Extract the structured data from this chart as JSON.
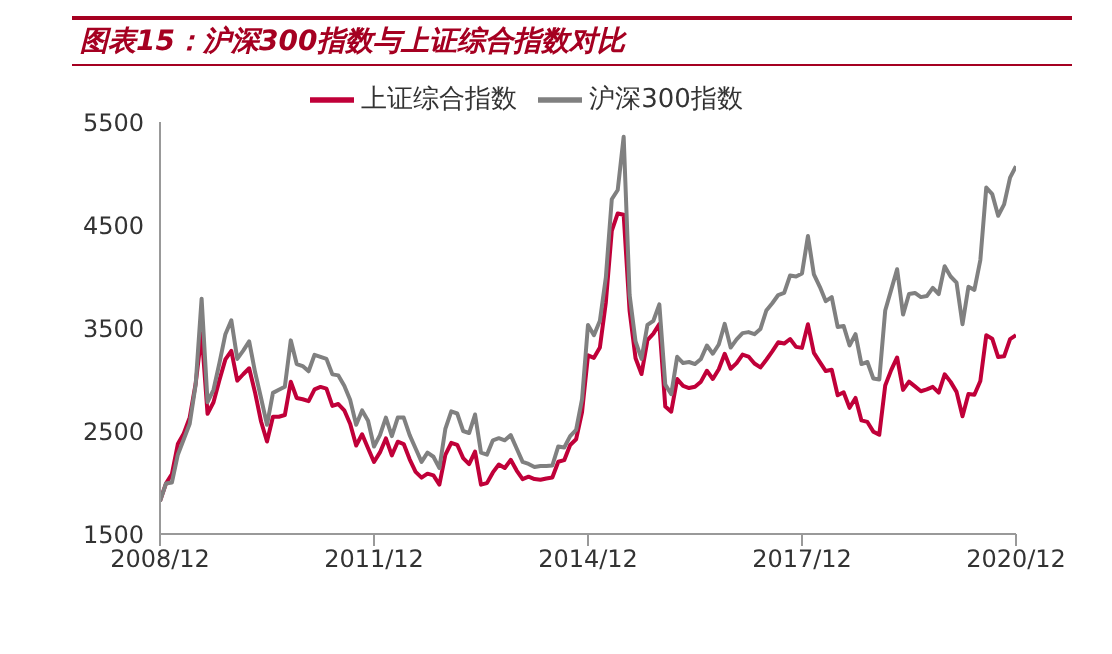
{
  "chart_data": {
    "type": "line",
    "title": "图表15：沪深300指数与上证综合指数对比",
    "x": [
      "2008-12",
      "2009-01",
      "2009-02",
      "2009-03",
      "2009-04",
      "2009-05",
      "2009-06",
      "2009-07",
      "2009-08",
      "2009-09",
      "2009-10",
      "2009-11",
      "2009-12",
      "2010-01",
      "2010-02",
      "2010-03",
      "2010-04",
      "2010-05",
      "2010-06",
      "2010-07",
      "2010-08",
      "2010-09",
      "2010-10",
      "2010-11",
      "2010-12",
      "2011-01",
      "2011-02",
      "2011-03",
      "2011-04",
      "2011-05",
      "2011-06",
      "2011-07",
      "2011-08",
      "2011-09",
      "2011-10",
      "2011-11",
      "2011-12",
      "2012-01",
      "2012-02",
      "2012-03",
      "2012-04",
      "2012-05",
      "2012-06",
      "2012-07",
      "2012-08",
      "2012-09",
      "2012-10",
      "2012-11",
      "2012-12",
      "2013-01",
      "2013-02",
      "2013-03",
      "2013-04",
      "2013-05",
      "2013-06",
      "2013-07",
      "2013-08",
      "2013-09",
      "2013-10",
      "2013-11",
      "2013-12",
      "2014-01",
      "2014-02",
      "2014-03",
      "2014-04",
      "2014-05",
      "2014-06",
      "2014-07",
      "2014-08",
      "2014-09",
      "2014-10",
      "2014-11",
      "2014-12",
      "2015-01",
      "2015-02",
      "2015-03",
      "2015-04",
      "2015-05",
      "2015-06",
      "2015-07",
      "2015-08",
      "2015-09",
      "2015-10",
      "2015-11",
      "2015-12",
      "2016-01",
      "2016-02",
      "2016-03",
      "2016-04",
      "2016-05",
      "2016-06",
      "2016-07",
      "2016-08",
      "2016-09",
      "2016-10",
      "2016-11",
      "2016-12",
      "2017-01",
      "2017-02",
      "2017-03",
      "2017-04",
      "2017-05",
      "2017-06",
      "2017-07",
      "2017-08",
      "2017-09",
      "2017-10",
      "2017-11",
      "2017-12",
      "2018-01",
      "2018-02",
      "2018-03",
      "2018-04",
      "2018-05",
      "2018-06",
      "2018-07",
      "2018-08",
      "2018-09",
      "2018-10",
      "2018-11",
      "2018-12",
      "2019-01",
      "2019-02",
      "2019-03",
      "2019-04",
      "2019-05",
      "2019-06",
      "2019-07",
      "2019-08",
      "2019-09",
      "2019-10",
      "2019-11",
      "2019-12",
      "2020-01",
      "2020-02",
      "2020-03",
      "2020-04",
      "2020-05",
      "2020-06",
      "2020-07",
      "2020-08",
      "2020-09",
      "2020-10",
      "2020-11",
      "2020-12"
    ],
    "series": [
      {
        "name": "上证综合指数",
        "color": "#c00039",
        "values": [
          1820,
          1990,
          2082,
          2373,
          2477,
          2632,
          2959,
          3450,
          2667,
          2779,
          2995,
          3195,
          3277,
          2989,
          3051,
          3109,
          2870,
          2592,
          2398,
          2638,
          2638,
          2655,
          2978,
          2820,
          2808,
          2790,
          2905,
          2928,
          2911,
          2743,
          2762,
          2701,
          2568,
          2359,
          2468,
          2333,
          2199,
          2292,
          2428,
          2263,
          2396,
          2373,
          2225,
          2103,
          2047,
          2086,
          2069,
          1980,
          2269,
          2385,
          2366,
          2237,
          2178,
          2300,
          1979,
          1994,
          2098,
          2175,
          2141,
          2220,
          2116,
          2033,
          2056,
          2033,
          2026,
          2039,
          2048,
          2202,
          2217,
          2364,
          2420,
          2683,
          3235,
          3210,
          3310,
          3748,
          4442,
          4612,
          4600,
          3664,
          3206,
          3053,
          3383,
          3445,
          3539,
          2738,
          2688,
          3004,
          2938,
          2917,
          2930,
          2979,
          3085,
          3005,
          3100,
          3250,
          3104,
          3159,
          3242,
          3223,
          3155,
          3117,
          3192,
          3273,
          3361,
          3349,
          3393,
          3317,
          3307,
          3536,
          3259,
          3169,
          3082,
          3095,
          2847,
          2876,
          2725,
          2821,
          2603,
          2588,
          2494,
          2464,
          2941,
          3091,
          3214,
          2899,
          2979,
          2933,
          2886,
          2905,
          2929,
          2872,
          3050,
          2977,
          2880,
          2643,
          2860,
          2852,
          2985,
          3429,
          3396,
          3218,
          3225,
          3392,
          3430
        ]
      },
      {
        "name": "沪深300指数",
        "color": "#808080",
        "values": [
          1817,
          1990,
          2000,
          2270,
          2420,
          2570,
          2950,
          3785,
          2780,
          2900,
          3160,
          3440,
          3575,
          3200,
          3280,
          3370,
          3070,
          2820,
          2560,
          2870,
          2900,
          2930,
          3380,
          3150,
          3130,
          3080,
          3240,
          3220,
          3200,
          3050,
          3040,
          2940,
          2800,
          2560,
          2700,
          2600,
          2350,
          2460,
          2630,
          2450,
          2630,
          2630,
          2460,
          2330,
          2200,
          2290,
          2250,
          2140,
          2520,
          2690,
          2670,
          2500,
          2480,
          2660,
          2290,
          2270,
          2410,
          2430,
          2410,
          2460,
          2330,
          2200,
          2180,
          2150,
          2160,
          2160,
          2165,
          2350,
          2340,
          2450,
          2510,
          2810,
          3530,
          3430,
          3570,
          3990,
          4750,
          4840,
          5357,
          3820,
          3370,
          3200,
          3530,
          3570,
          3730,
          2950,
          2857,
          3220,
          3160,
          3170,
          3150,
          3200,
          3330,
          3250,
          3340,
          3540,
          3310,
          3390,
          3450,
          3460,
          3440,
          3490,
          3670,
          3740,
          3820,
          3840,
          4010,
          4000,
          4030,
          4393,
          4020,
          3900,
          3760,
          3800,
          3510,
          3520,
          3330,
          3440,
          3150,
          3170,
          3010,
          3000,
          3670,
          3870,
          4071,
          3630,
          3830,
          3840,
          3800,
          3810,
          3890,
          3830,
          4100,
          4000,
          3940,
          3536,
          3900,
          3870,
          4160,
          4864,
          4800,
          4590,
          4700,
          4960,
          5070
        ]
      }
    ],
    "xlim": [
      "2008-12",
      "2020-12"
    ],
    "xticks": [
      {
        "value": "2008-12",
        "label": "2008/12"
      },
      {
        "value": "2011-12",
        "label": "2011/12"
      },
      {
        "value": "2014-12",
        "label": "2014/12"
      },
      {
        "value": "2017-12",
        "label": "2017/12"
      },
      {
        "value": "2020-12",
        "label": "2020/12"
      }
    ],
    "ylim": [
      1500,
      5500
    ],
    "yticks": [
      1500,
      2500,
      3500,
      4500,
      5500
    ],
    "grid": false,
    "legend": "top",
    "marker": "none",
    "line_style": "solid"
  }
}
